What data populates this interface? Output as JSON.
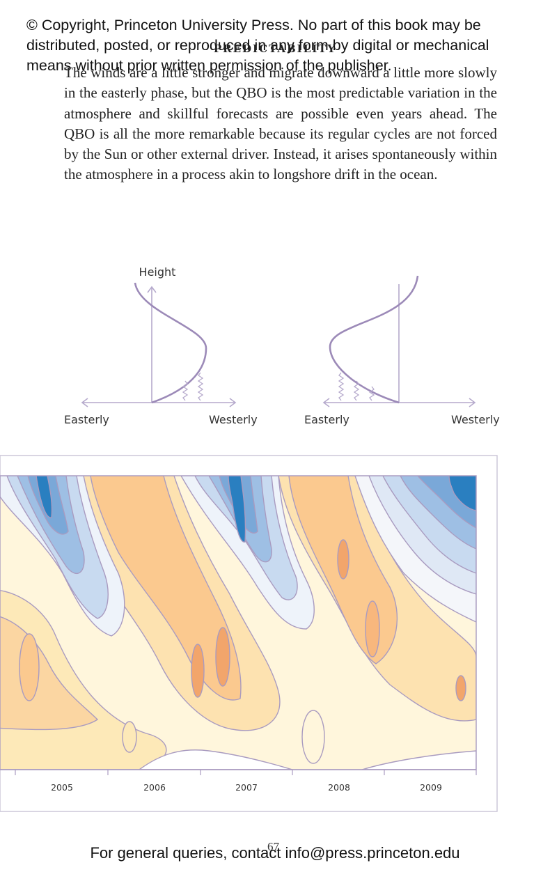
{
  "copyright": "© Copyright, Princeton University Press. No part of this book may be distributed, posted, or reproduced in any form by digital or mechanical means without prior written permission of the publisher.",
  "running_head": "PREDICTABILITY",
  "body_text": "The winds are a little stronger and migrate downward a little more slowly in the easterly phase, but the QBO is the most predictable variation in the atmosphere and skillful forecasts are possible even years ahead. The QBO is all the more remarkable because its regular cycles are not forced by the Sun or other external driver. Instead, it arises spontaneously within the atmosphere in a process akin to longshore drift in the ocean.",
  "diagram": {
    "y_axis_label": "Height",
    "left_panel": {
      "left_label": "Easterly",
      "right_label": "Westerly"
    },
    "right_panel": {
      "left_label": "Easterly",
      "right_label": "Westerly"
    }
  },
  "contour_plot": {
    "x_tick_labels": [
      "2005",
      "2006",
      "2007",
      "2008",
      "2009"
    ],
    "colors": {
      "easterly_dark": "#2a7fc0",
      "easterly_mid": "#7aa8d8",
      "easterly_light": "#c8daf0",
      "neutral": "#f7f5f2",
      "westerly_light": "#fde9b8",
      "westerly_mid": "#fbc98f",
      "westerly_dark": "#f2a56b",
      "contour_line": "#a99bc0"
    }
  },
  "page_number": "67",
  "footer": "For general queries, contact info@press.princeton.edu"
}
